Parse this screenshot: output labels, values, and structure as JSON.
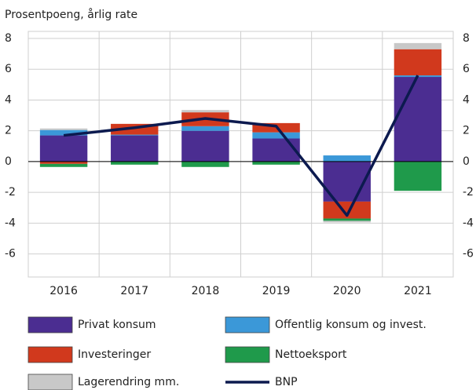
{
  "chart_data": {
    "type": "bar",
    "stacked": true,
    "title": "Prosentpoeng, årlig rate",
    "categories": [
      "2016",
      "2017",
      "2018",
      "2019",
      "2020",
      "2021"
    ],
    "series": [
      {
        "name": "Privat konsum",
        "color": "#4b2d91",
        "values": [
          1.7,
          1.7,
          2.0,
          1.5,
          -2.6,
          5.5
        ]
      },
      {
        "name": "Offentlig konsum og invest.",
        "color": "#3b98d8",
        "values": [
          0.35,
          0.05,
          0.3,
          0.4,
          0.4,
          0.1
        ]
      },
      {
        "name": "Investeringer",
        "color": "#d1391d",
        "values": [
          -0.15,
          0.7,
          0.9,
          0.6,
          -1.1,
          1.7
        ]
      },
      {
        "name": "Nettoeksport",
        "color": "#1f9a4b",
        "values": [
          -0.2,
          -0.2,
          -0.35,
          -0.2,
          -0.15,
          -1.9
        ]
      },
      {
        "name": "Lagerendring mm.",
        "color": "#c8c8c8",
        "values": [
          0.1,
          0.0,
          0.15,
          0.0,
          -0.1,
          0.4
        ]
      },
      {
        "name": "BNP",
        "type": "line",
        "color": "#0c1a4f",
        "values": [
          1.7,
          2.2,
          2.8,
          2.3,
          -3.5,
          5.6
        ]
      }
    ],
    "ylim": [
      -7.5,
      8
    ],
    "yticks": [
      -6,
      -4,
      -2,
      0,
      2,
      4,
      6,
      8
    ],
    "y2lim": [
      -7.5,
      8
    ],
    "y2ticks": [
      -6,
      -4,
      -2,
      0,
      2,
      4,
      6,
      8
    ],
    "grid": true
  }
}
